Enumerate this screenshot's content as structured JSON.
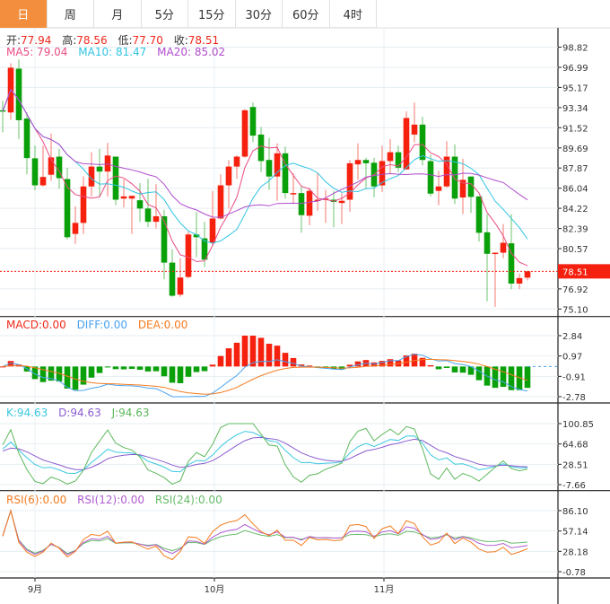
{
  "tabs": [
    "日",
    "周",
    "月",
    "5分",
    "15分",
    "30分",
    "60分",
    "4时"
  ],
  "active_tab": 0,
  "ohlc_legend": {
    "open_label": "开:",
    "open": "77.94",
    "high_label": "高:",
    "high": "78.56",
    "low_label": "低:",
    "low": "77.70",
    "close_label": "收:",
    "close": "78.51"
  },
  "ma_legend": {
    "ma5": "MA5: 79.04",
    "ma10": "MA10: 81.47",
    "ma20": "MA20: 85.02"
  },
  "macd_legend": {
    "macd": "MACD:0.00",
    "diff": "DIFF:0.00",
    "dea": "DEA:0.00"
  },
  "kdj_legend": {
    "k": "K:94.63",
    "d": "D:94.63",
    "j": "J:94.63"
  },
  "rsi_legend": {
    "rsi6": "RSI(6):0.00",
    "rsi12": "RSI(12):0.00",
    "rsi24": "RSI(24):0.00"
  },
  "price_axis": [
    "98.82",
    "96.99",
    "95.17",
    "93.34",
    "91.52",
    "89.69",
    "87.87",
    "86.04",
    "84.22",
    "82.39",
    "80.57",
    "76.92",
    "75.10"
  ],
  "price_range": [
    75.1,
    98.82
  ],
  "last_price": "78.51",
  "macd_axis": [
    "2.84",
    "0.97",
    "-0.91",
    "-2.78"
  ],
  "kdj_axis": [
    "100.85",
    "64.68",
    "28.51",
    "-7.66"
  ],
  "rsi_axis": [
    "86.10",
    "57.14",
    "28.18",
    "-0.78"
  ],
  "x_axis": [
    {
      "label": "9月",
      "index": 4
    },
    {
      "label": "10月",
      "index": 26
    },
    {
      "label": "11月",
      "index": 47
    }
  ],
  "colors": {
    "up": "#f5200e",
    "down": "#0aa00a",
    "ma5": "#ea4c84",
    "ma10": "#30c4e2",
    "ma20": "#b04ccc",
    "diff": "#4aa3f0",
    "dea": "#f57c20",
    "k": "#3cc8e0",
    "d": "#8a5cd0",
    "j": "#5cb85c",
    "rsi6": "#f57c20",
    "rsi12": "#b05cd0",
    "rsi24": "#66bb6a",
    "active_tab": "#f28e3e"
  },
  "candles": [
    [
      93.1,
      93.95,
      91.1,
      93.0
    ],
    [
      92.9,
      97.36,
      92.24,
      96.95
    ],
    [
      96.87,
      97.7,
      90.5,
      92.2
    ],
    [
      92.35,
      92.9,
      87.3,
      88.77
    ],
    [
      88.75,
      89.9,
      85.85,
      86.3
    ],
    [
      86.3,
      89.9,
      86.2,
      87.06
    ],
    [
      87.26,
      91.0,
      86.7,
      88.83
    ],
    [
      88.9,
      89.6,
      86.0,
      86.95
    ],
    [
      86.87,
      87.9,
      81.4,
      81.6
    ],
    [
      81.9,
      84.4,
      81.0,
      82.9
    ],
    [
      82.9,
      87.1,
      81.9,
      86.2
    ],
    [
      86.2,
      89.3,
      85.3,
      88.0
    ],
    [
      88.0,
      89.6,
      85.2,
      87.55
    ],
    [
      87.55,
      90.15,
      85.3,
      89.0
    ],
    [
      88.9,
      88.9,
      84.5,
      85.0
    ],
    [
      85.1,
      86.85,
      84.3,
      85.3
    ],
    [
      85.1,
      85.35,
      81.9,
      85.35
    ],
    [
      84.95,
      86.5,
      83.0,
      84.2
    ],
    [
      84.2,
      86.9,
      82.5,
      83.0
    ],
    [
      83.0,
      86.4,
      82.4,
      83.5
    ],
    [
      83.5,
      84.1,
      77.8,
      79.3
    ],
    [
      79.3,
      80.5,
      76.2,
      76.3
    ],
    [
      76.4,
      79.7,
      76.2,
      77.95
    ],
    [
      78.0,
      82.1,
      77.9,
      81.85
    ],
    [
      81.85,
      83.9,
      79.8,
      81.6
    ],
    [
      81.5,
      83.0,
      78.9,
      79.57
    ],
    [
      81.1,
      85.8,
      80.8,
      83.3
    ],
    [
      83.3,
      87.3,
      83.2,
      86.3
    ],
    [
      86.3,
      88.6,
      84.2,
      88.0
    ],
    [
      88.0,
      89.0,
      86.9,
      88.9
    ],
    [
      88.9,
      93.2,
      88.8,
      93.1
    ],
    [
      93.4,
      93.8,
      90.2,
      90.8
    ],
    [
      90.9,
      91.6,
      87.5,
      88.5
    ],
    [
      88.6,
      90.6,
      85.9,
      87.1
    ],
    [
      87.1,
      90.1,
      84.9,
      89.2
    ],
    [
      89.2,
      89.8,
      85.1,
      85.6
    ],
    [
      85.55,
      87.4,
      84.6,
      85.6
    ],
    [
      85.6,
      86.2,
      82.0,
      83.6
    ],
    [
      83.55,
      86.1,
      82.7,
      85.8
    ],
    [
      84.9,
      87.4,
      84.0,
      85.0
    ],
    [
      85.0,
      85.9,
      82.9,
      85.1
    ],
    [
      85.0,
      85.8,
      82.5,
      84.8
    ],
    [
      84.7,
      85.6,
      82.8,
      84.9
    ],
    [
      85.0,
      88.6,
      83.9,
      88.3
    ],
    [
      88.2,
      90.1,
      86.8,
      88.6
    ],
    [
      88.6,
      88.8,
      86.0,
      88.3
    ],
    [
      88.35,
      88.8,
      85.2,
      86.2
    ],
    [
      86.3,
      89.9,
      85.7,
      88.5
    ],
    [
      88.5,
      90.5,
      87.4,
      89.3
    ],
    [
      89.3,
      89.9,
      87.5,
      87.9
    ],
    [
      87.75,
      93.0,
      87.7,
      92.4
    ],
    [
      90.9,
      93.8,
      90.2,
      91.8
    ],
    [
      91.8,
      92.5,
      88.1,
      88.6
    ],
    [
      88.5,
      89.1,
      85.3,
      85.55
    ],
    [
      85.8,
      87.6,
      84.5,
      86.2
    ],
    [
      86.2,
      90.3,
      86.1,
      88.9
    ],
    [
      88.9,
      90.0,
      84.6,
      85.1
    ],
    [
      85.2,
      88.7,
      83.7,
      86.8
    ],
    [
      87.1,
      87.1,
      83.8,
      85.25
    ],
    [
      85.3,
      85.3,
      81.2,
      82.0
    ],
    [
      82.05,
      83.7,
      75.8,
      80.1
    ],
    [
      80.1,
      80.2,
      75.3,
      80.2
    ],
    [
      80.2,
      82.8,
      79.7,
      81.1
    ],
    [
      81.05,
      83.7,
      76.9,
      77.4
    ],
    [
      77.4,
      78.3,
      76.9,
      77.9
    ],
    [
      77.94,
      78.56,
      77.7,
      78.51
    ]
  ]
}
